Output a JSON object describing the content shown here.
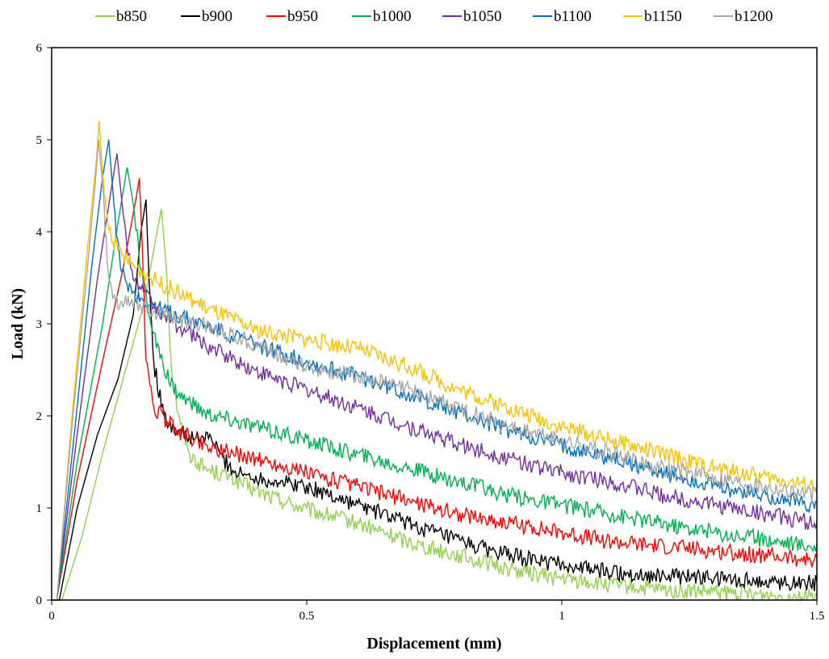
{
  "chart_data": {
    "type": "line",
    "title": "",
    "xlabel": "Displacement (mm)",
    "ylabel": "Load (kN)",
    "xlim": [
      0,
      1.5
    ],
    "ylim": [
      0,
      6
    ],
    "x_ticks": [
      "0",
      "0.5",
      "1",
      "1.5"
    ],
    "y_ticks": [
      "0",
      "1",
      "2",
      "3",
      "4",
      "5",
      "6"
    ],
    "grid": false,
    "legend_position": "top",
    "series": [
      {
        "name": "b850",
        "color": "#92d050",
        "points": [
          [
            0,
            0
          ],
          [
            0.02,
            0
          ],
          [
            0.06,
            0.7
          ],
          [
            0.1,
            1.6
          ],
          [
            0.14,
            2.4
          ],
          [
            0.18,
            3.2
          ],
          [
            0.2,
            3.8
          ],
          [
            0.215,
            4.25
          ],
          [
            0.225,
            3.6
          ],
          [
            0.235,
            2.5
          ],
          [
            0.25,
            2.0
          ],
          [
            0.27,
            1.6
          ],
          [
            0.3,
            1.45
          ],
          [
            0.35,
            1.35
          ],
          [
            0.4,
            1.2
          ],
          [
            0.5,
            1.0
          ],
          [
            0.6,
            0.85
          ],
          [
            0.7,
            0.65
          ],
          [
            0.8,
            0.5
          ],
          [
            0.9,
            0.35
          ],
          [
            1.0,
            0.25
          ],
          [
            1.1,
            0.18
          ],
          [
            1.2,
            0.12
          ],
          [
            1.3,
            0.1
          ],
          [
            1.4,
            0.07
          ],
          [
            1.5,
            0.05
          ]
        ]
      },
      {
        "name": "b900",
        "color": "#000000",
        "points": [
          [
            0,
            0
          ],
          [
            0.015,
            0
          ],
          [
            0.05,
            1.0
          ],
          [
            0.09,
            1.8
          ],
          [
            0.13,
            2.4
          ],
          [
            0.16,
            3.1
          ],
          [
            0.175,
            4.0
          ],
          [
            0.185,
            4.35
          ],
          [
            0.19,
            3.6
          ],
          [
            0.2,
            2.6
          ],
          [
            0.22,
            2.0
          ],
          [
            0.25,
            1.85
          ],
          [
            0.28,
            1.75
          ],
          [
            0.31,
            1.8
          ],
          [
            0.33,
            1.6
          ],
          [
            0.36,
            1.4
          ],
          [
            0.4,
            1.35
          ],
          [
            0.45,
            1.3
          ],
          [
            0.5,
            1.25
          ],
          [
            0.6,
            1.05
          ],
          [
            0.7,
            0.85
          ],
          [
            0.8,
            0.65
          ],
          [
            0.9,
            0.5
          ],
          [
            1.0,
            0.4
          ],
          [
            1.1,
            0.32
          ],
          [
            1.2,
            0.28
          ],
          [
            1.3,
            0.25
          ],
          [
            1.4,
            0.22
          ],
          [
            1.5,
            0.2
          ]
        ]
      },
      {
        "name": "b950",
        "color": "#ff0000",
        "points": [
          [
            0,
            0
          ],
          [
            0.01,
            0
          ],
          [
            0.05,
            1.3
          ],
          [
            0.1,
            2.6
          ],
          [
            0.14,
            3.6
          ],
          [
            0.165,
            4.35
          ],
          [
            0.172,
            4.58
          ],
          [
            0.178,
            3.8
          ],
          [
            0.185,
            2.6
          ],
          [
            0.2,
            2.1
          ],
          [
            0.25,
            1.85
          ],
          [
            0.3,
            1.7
          ],
          [
            0.4,
            1.55
          ],
          [
            0.5,
            1.4
          ],
          [
            0.6,
            1.25
          ],
          [
            0.7,
            1.1
          ],
          [
            0.8,
            0.95
          ],
          [
            0.9,
            0.85
          ],
          [
            1.0,
            0.75
          ],
          [
            1.1,
            0.65
          ],
          [
            1.2,
            0.6
          ],
          [
            1.3,
            0.55
          ],
          [
            1.4,
            0.5
          ],
          [
            1.5,
            0.45
          ]
        ]
      },
      {
        "name": "b1000",
        "color": "#00b050",
        "points": [
          [
            0,
            0
          ],
          [
            0.01,
            0
          ],
          [
            0.05,
            1.5
          ],
          [
            0.1,
            3.0
          ],
          [
            0.13,
            4.1
          ],
          [
            0.148,
            4.7
          ],
          [
            0.16,
            4.3
          ],
          [
            0.175,
            3.6
          ],
          [
            0.2,
            2.9
          ],
          [
            0.22,
            2.5
          ],
          [
            0.25,
            2.25
          ],
          [
            0.3,
            2.05
          ],
          [
            0.4,
            1.9
          ],
          [
            0.5,
            1.75
          ],
          [
            0.6,
            1.6
          ],
          [
            0.7,
            1.45
          ],
          [
            0.8,
            1.3
          ],
          [
            0.9,
            1.15
          ],
          [
            1.0,
            1.05
          ],
          [
            1.1,
            0.95
          ],
          [
            1.2,
            0.85
          ],
          [
            1.3,
            0.75
          ],
          [
            1.4,
            0.68
          ],
          [
            1.5,
            0.6
          ]
        ]
      },
      {
        "name": "b1050",
        "color": "#7030a0",
        "points": [
          [
            0,
            0
          ],
          [
            0.01,
            0
          ],
          [
            0.05,
            1.8
          ],
          [
            0.09,
            3.5
          ],
          [
            0.115,
            4.4
          ],
          [
            0.128,
            4.85
          ],
          [
            0.14,
            4.2
          ],
          [
            0.155,
            3.6
          ],
          [
            0.18,
            3.35
          ],
          [
            0.22,
            3.1
          ],
          [
            0.3,
            2.8
          ],
          [
            0.4,
            2.5
          ],
          [
            0.5,
            2.3
          ],
          [
            0.6,
            2.1
          ],
          [
            0.7,
            1.9
          ],
          [
            0.8,
            1.7
          ],
          [
            0.9,
            1.55
          ],
          [
            1.0,
            1.4
          ],
          [
            1.1,
            1.3
          ],
          [
            1.2,
            1.15
          ],
          [
            1.3,
            1.05
          ],
          [
            1.4,
            0.95
          ],
          [
            1.5,
            0.85
          ]
        ]
      },
      {
        "name": "b1100",
        "color": "#0070c0",
        "points": [
          [
            0,
            0
          ],
          [
            0.01,
            0
          ],
          [
            0.05,
            2.1
          ],
          [
            0.08,
            3.7
          ],
          [
            0.1,
            4.6
          ],
          [
            0.112,
            5.0
          ],
          [
            0.122,
            4.3
          ],
          [
            0.135,
            3.6
          ],
          [
            0.16,
            3.35
          ],
          [
            0.2,
            3.2
          ],
          [
            0.3,
            3.0
          ],
          [
            0.4,
            2.8
          ],
          [
            0.5,
            2.6
          ],
          [
            0.6,
            2.45
          ],
          [
            0.7,
            2.25
          ],
          [
            0.8,
            2.05
          ],
          [
            0.9,
            1.85
          ],
          [
            1.0,
            1.7
          ],
          [
            1.1,
            1.55
          ],
          [
            1.2,
            1.4
          ],
          [
            1.3,
            1.25
          ],
          [
            1.4,
            1.15
          ],
          [
            1.5,
            1.05
          ]
        ]
      },
      {
        "name": "b1150",
        "color": "#ffc000",
        "points": [
          [
            0,
            0
          ],
          [
            0.01,
            0
          ],
          [
            0.04,
            2.0
          ],
          [
            0.07,
            3.8
          ],
          [
            0.088,
            4.8
          ],
          [
            0.093,
            5.2
          ],
          [
            0.1,
            4.6
          ],
          [
            0.11,
            4.1
          ],
          [
            0.13,
            3.8
          ],
          [
            0.16,
            3.65
          ],
          [
            0.2,
            3.5
          ],
          [
            0.3,
            3.2
          ],
          [
            0.4,
            2.95
          ],
          [
            0.5,
            2.85
          ],
          [
            0.6,
            2.75
          ],
          [
            0.7,
            2.55
          ],
          [
            0.8,
            2.3
          ],
          [
            0.9,
            2.1
          ],
          [
            1.0,
            1.9
          ],
          [
            1.1,
            1.75
          ],
          [
            1.2,
            1.6
          ],
          [
            1.3,
            1.45
          ],
          [
            1.4,
            1.35
          ],
          [
            1.5,
            1.25
          ]
        ]
      },
      {
        "name": "b1200",
        "color": "#a6a6a6",
        "points": [
          [
            0,
            0
          ],
          [
            0.01,
            0
          ],
          [
            0.04,
            1.9
          ],
          [
            0.07,
            3.6
          ],
          [
            0.085,
            4.5
          ],
          [
            0.092,
            5.0
          ],
          [
            0.1,
            4.5
          ],
          [
            0.11,
            3.6
          ],
          [
            0.125,
            3.25
          ],
          [
            0.15,
            3.3
          ],
          [
            0.2,
            3.15
          ],
          [
            0.3,
            3.0
          ],
          [
            0.4,
            2.8
          ],
          [
            0.5,
            2.55
          ],
          [
            0.6,
            2.45
          ],
          [
            0.7,
            2.3
          ],
          [
            0.8,
            2.1
          ],
          [
            0.9,
            1.9
          ],
          [
            1.0,
            1.75
          ],
          [
            1.1,
            1.6
          ],
          [
            1.2,
            1.45
          ],
          [
            1.3,
            1.35
          ],
          [
            1.4,
            1.25
          ],
          [
            1.5,
            1.15
          ]
        ]
      }
    ]
  }
}
